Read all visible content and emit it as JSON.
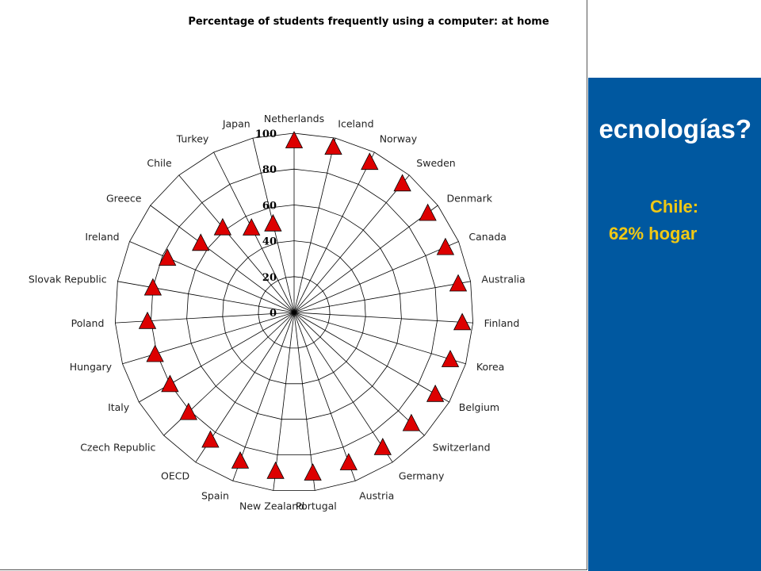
{
  "slide": {
    "title": "ecnologías?",
    "highlight_label": "Chile:",
    "highlight_value": "62% hogar",
    "colors": {
      "panel": "#0058a0",
      "title": "#ffffff",
      "highlight": "#f0c814"
    }
  },
  "chart_data": {
    "type": "radar",
    "title": "Percentage of students frequently using a computer: at home",
    "rlim": [
      0,
      100
    ],
    "r_ticks": [
      "0",
      "20",
      "40",
      "60",
      "80",
      "100"
    ],
    "categories": [
      "Netherlands",
      "Iceland",
      "Norway",
      "Sweden",
      "Denmark",
      "Canada",
      "Australia",
      "Finland",
      "Korea",
      "Belgium",
      "Switzerland",
      "Germany",
      "Austria",
      "Portugal",
      "New Zealand",
      "Spain",
      "OECD",
      "Czech Republic",
      "Italy",
      "Hungary",
      "Poland",
      "Slovak Republic",
      "Ireland",
      "Greece",
      "Chile",
      "Turkey",
      "Japan"
    ],
    "series": [
      {
        "values": [
          96,
          95,
          94,
          94,
          93,
          92,
          93,
          94,
          91,
          91,
          90,
          90,
          89,
          90,
          89,
          88,
          85,
          81,
          80,
          81,
          82,
          80,
          77,
          65,
          62,
          53,
          51
        ],
        "marker": "triangle",
        "color": "#dd0000"
      }
    ],
    "grid": true
  }
}
